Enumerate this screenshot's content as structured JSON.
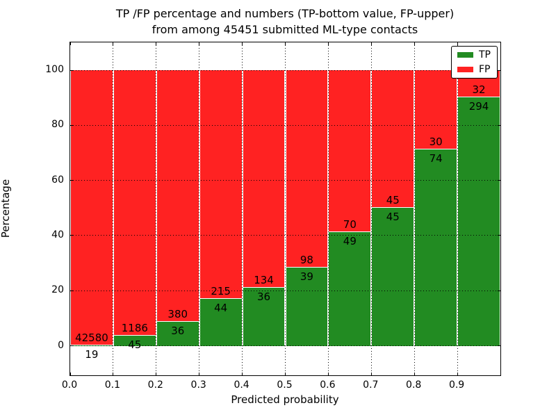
{
  "title": {
    "line1": "TP /FP percentage and numbers (TP-bottom value, FP-upper)",
    "line2": "from among 45451 submitted ML-type contacts"
  },
  "axes": {
    "xlabel": "Predicted probability",
    "ylabel": "Percentage",
    "ytick_labels": [
      "0",
      "20",
      "40",
      "60",
      "80",
      "100"
    ],
    "ytick_values": [
      0,
      20,
      40,
      60,
      80,
      100
    ],
    "xtick_labels": [
      "0.0",
      "0.1",
      "0.2",
      "0.3",
      "0.4",
      "0.5",
      "0.6",
      "0.7",
      "0.8",
      "0.9"
    ],
    "xtick_values": [
      0.0,
      0.1,
      0.2,
      0.3,
      0.4,
      0.5,
      0.6,
      0.7,
      0.8,
      0.9
    ]
  },
  "colors": {
    "tp": "#228B22",
    "fp": "#FF2222",
    "text": "#000000",
    "background": "#FFFFFF"
  },
  "legend": {
    "items": [
      {
        "label": "TP",
        "color_key": "tp"
      },
      {
        "label": "FP",
        "color_key": "fp"
      }
    ]
  },
  "chart_data": {
    "type": "bar",
    "stacked": true,
    "normalized": "each bin scaled to 100%, TP on bottom (green), FP on top (red)",
    "title": "TP /FP percentage and numbers (TP-bottom value, FP-upper) from among 45451 submitted ML-type contacts",
    "xlabel": "Predicted probability",
    "ylabel": "Percentage",
    "xlim": [
      0.0,
      1.0
    ],
    "ylim": [
      -10.7,
      110.1
    ],
    "grid": true,
    "legend_position": "upper right",
    "bin_width": 0.1,
    "total_contacts": 45451,
    "bins": [
      {
        "x_start": 0.0,
        "tp": 19,
        "fp": 42580
      },
      {
        "x_start": 0.1,
        "tp": 45,
        "fp": 1186
      },
      {
        "x_start": 0.2,
        "tp": 36,
        "fp": 380
      },
      {
        "x_start": 0.3,
        "tp": 44,
        "fp": 215
      },
      {
        "x_start": 0.4,
        "tp": 36,
        "fp": 134
      },
      {
        "x_start": 0.5,
        "tp": 39,
        "fp": 98
      },
      {
        "x_start": 0.6,
        "tp": 49,
        "fp": 70
      },
      {
        "x_start": 0.7,
        "tp": 45,
        "fp": 45
      },
      {
        "x_start": 0.8,
        "tp": 74,
        "fp": 30
      },
      {
        "x_start": 0.9,
        "tp": 294,
        "fp": 32
      }
    ]
  }
}
